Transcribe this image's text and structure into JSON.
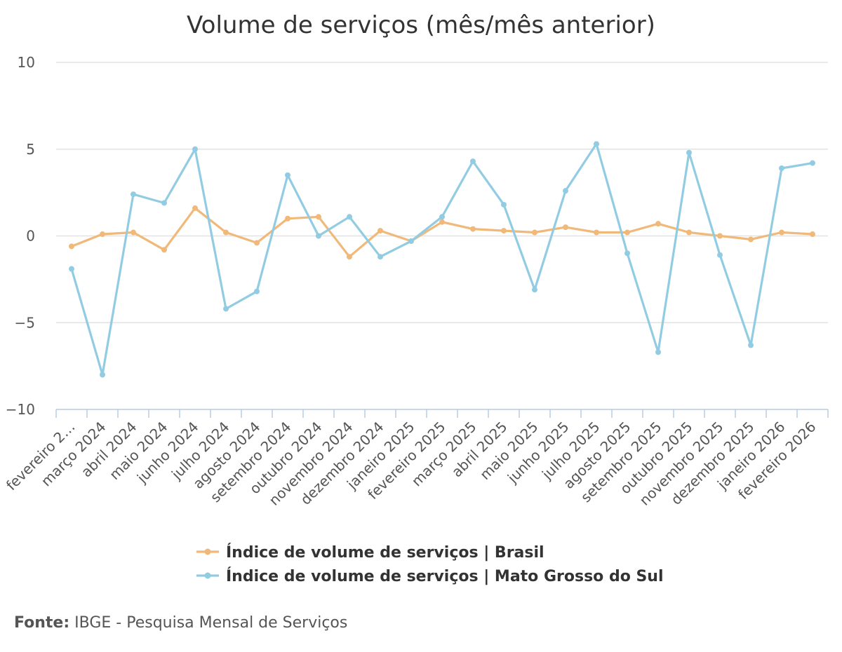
{
  "chart_data": {
    "type": "line",
    "title": "Volume de serviços (mês/mês anterior)",
    "xlabel": "",
    "ylabel": "",
    "ylim": [
      -10,
      10
    ],
    "yticks": [
      10,
      5,
      0,
      -5,
      -10
    ],
    "yticks_labels": [
      "10",
      "5",
      "0",
      "−5",
      "−10"
    ],
    "categories": [
      "fevereiro 2…",
      "março 2024",
      "abril 2024",
      "maio 2024",
      "junho 2024",
      "julho 2024",
      "agosto 2024",
      "setembro 2024",
      "outubro 2024",
      "novembro 2024",
      "dezembro 2024",
      "janeiro 2025",
      "fevereiro 2025",
      "março 2025",
      "abril 2025",
      "maio 2025",
      "junho 2025",
      "julho 2025",
      "agosto 2025",
      "setembro 2025",
      "outubro 2025",
      "novembro 2025",
      "dezembro 2025",
      "janeiro 2026",
      "fevereiro 2026"
    ],
    "series": [
      {
        "name": "Índice de volume de serviços | Brasil",
        "color": "#f0b97a",
        "values": [
          -0.6,
          0.1,
          0.2,
          -0.8,
          1.6,
          0.2,
          -0.4,
          1.0,
          1.1,
          -1.2,
          0.3,
          -0.3,
          0.8,
          0.4,
          0.3,
          0.2,
          0.5,
          0.2,
          0.2,
          0.7,
          0.2,
          0.0,
          -0.2,
          0.2,
          0.1
        ]
      },
      {
        "name": "Índice de volume de serviços | Mato Grosso do Sul",
        "color": "#92cce3",
        "values": [
          -1.9,
          -8.0,
          2.4,
          1.9,
          5.0,
          -4.2,
          -3.2,
          3.5,
          0.0,
          1.1,
          -1.2,
          -0.3,
          1.1,
          4.3,
          1.8,
          -3.1,
          2.6,
          5.3,
          -1.0,
          -6.7,
          4.8,
          -1.1,
          -6.3,
          3.9,
          4.2
        ]
      }
    ],
    "legend_position": "bottom-center",
    "grid": true
  },
  "source": {
    "label": "Fonte:",
    "text": "IBGE - Pesquisa Mensal de Serviços"
  }
}
